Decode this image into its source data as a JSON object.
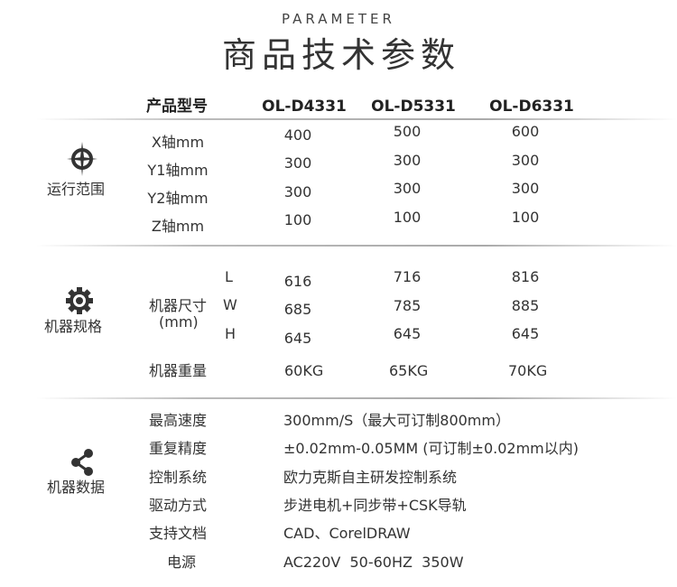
{
  "header": {
    "subtitle": "PARAMETER",
    "title": "商品技术参数"
  },
  "table": {
    "header_label": "产品型号",
    "models": [
      "OL-D4331",
      "OL-D5331",
      "OL-D6331"
    ],
    "range": {
      "section": "运行范围",
      "icon": "crosshair-icon",
      "rows": [
        {
          "label": "X轴mm",
          "values": [
            "400",
            "500",
            "600"
          ]
        },
        {
          "label": "Y1轴mm",
          "values": [
            "300",
            "300",
            "300"
          ]
        },
        {
          "label": "Y2轴mm",
          "values": [
            "300",
            "300",
            "300"
          ]
        },
        {
          "label": "Z轴mm",
          "values": [
            "100",
            "100",
            "100"
          ]
        }
      ]
    },
    "spec": {
      "section": "机器规格",
      "icon": "gear-icon",
      "size_label": "机器尺寸",
      "size_unit": "(mm)",
      "rows": [
        {
          "label": "L",
          "values": [
            "616",
            "716",
            "816"
          ]
        },
        {
          "label": "W",
          "values": [
            "685",
            "785",
            "885"
          ]
        },
        {
          "label": "H",
          "values": [
            "645",
            "645",
            "645"
          ]
        }
      ],
      "weight": {
        "label": "机器重量",
        "values": [
          "60KG",
          "65KG",
          "70KG"
        ]
      }
    },
    "data": {
      "section": "机器数据",
      "icon": "share-icon",
      "rows": [
        {
          "label": "最高速度",
          "value": "300mm/S（最大可订制800mm）"
        },
        {
          "label": "重复精度",
          "value": "±0.02mm-0.05MM (可订制±0.02mm以内)"
        },
        {
          "label": "控制系统",
          "value": "欧力克斯自主研发控制系统"
        },
        {
          "label": "驱动方式",
          "value": "步进电机+同步带+CSK导轨"
        },
        {
          "label": "支持文档",
          "value": "CAD、CorelDRAW"
        },
        {
          "label": "电源",
          "value": "AC220V  50-60HZ  350W"
        }
      ]
    }
  }
}
